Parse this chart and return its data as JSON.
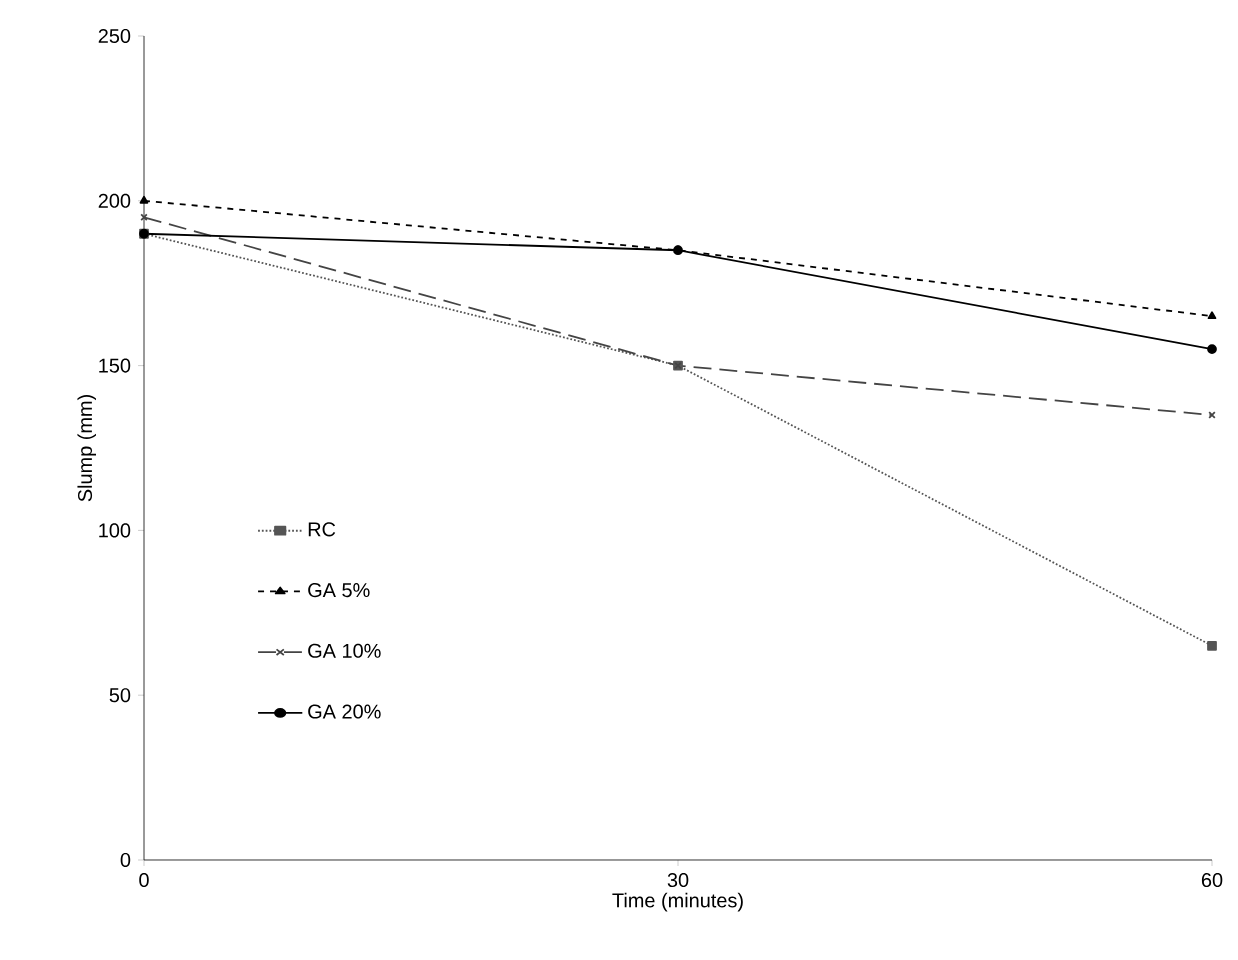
{
  "chart_data": {
    "type": "line",
    "xlabel": "Time (minutes)",
    "ylabel": "Slump (mm)",
    "x": [
      0,
      30,
      60
    ],
    "xlim": [
      0,
      60
    ],
    "xticks": [
      0,
      30,
      60
    ],
    "ylim": [
      0,
      250
    ],
    "yticks": [
      0,
      50,
      100,
      150,
      200,
      250
    ],
    "grid": false,
    "legend": "left",
    "series": [
      {
        "name": "RC",
        "color": "#555555",
        "values": [
          190,
          150,
          65
        ],
        "marker": "square",
        "line_style": "dotted"
      },
      {
        "name": "GA 5%",
        "color": "#000000",
        "values": [
          200,
          185,
          165
        ],
        "marker": "triangle",
        "line_style": "dashed"
      },
      {
        "name": "GA 10%",
        "color": "#444444",
        "values": [
          195,
          150,
          135
        ],
        "marker": "cross",
        "line_style": "loosely dashed"
      },
      {
        "name": "GA 20%",
        "color": "#000000",
        "values": [
          190,
          185,
          155
        ],
        "marker": "circle",
        "line_style": "solid"
      }
    ]
  }
}
